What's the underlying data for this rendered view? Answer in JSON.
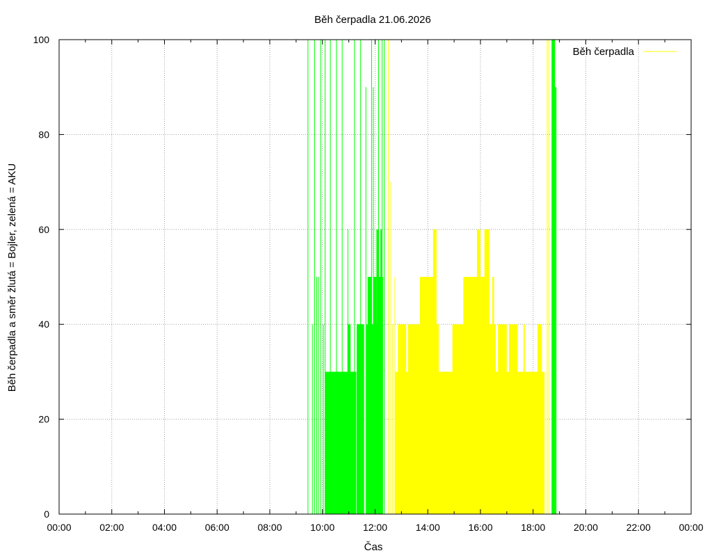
{
  "chart_data": {
    "type": "bar",
    "title": "Běh čerpadla 21.06.2026",
    "xlabel": "Čas",
    "ylabel": "Běh čerpadla a směr žlutá = Bojler, zelená = AKU",
    "xlim_hours": [
      0,
      24
    ],
    "ylim": [
      0,
      100
    ],
    "x_ticks": [
      "00:00",
      "02:00",
      "04:00",
      "06:00",
      "08:00",
      "10:00",
      "12:00",
      "14:00",
      "16:00",
      "18:00",
      "20:00",
      "22:00",
      "00:00"
    ],
    "y_ticks": [
      0,
      20,
      40,
      60,
      80,
      100
    ],
    "grid": true,
    "legend": {
      "position": "top-right",
      "entries": [
        {
          "label": "Běh čerpadla",
          "color": "#ffff00"
        }
      ]
    },
    "series": [
      {
        "color": "#00ff00",
        "note_direction": "AKU",
        "spikes": [
          {
            "t": "09:27",
            "v": 100
          },
          {
            "t": "09:37",
            "v": 40
          },
          {
            "t": "09:42",
            "v": 100
          },
          {
            "t": "09:47",
            "v": 50
          },
          {
            "t": "09:51",
            "v": 50
          },
          {
            "t": "09:56",
            "v": 100
          },
          {
            "t": "10:02",
            "v": 40
          },
          {
            "t": "10:06",
            "v": 100
          },
          {
            "t": "10:18",
            "v": 100
          },
          {
            "t": "10:32",
            "v": 100
          },
          {
            "t": "10:45",
            "v": 100
          },
          {
            "t": "10:58",
            "v": 60
          },
          {
            "t": "11:13",
            "v": 100
          },
          {
            "t": "11:22",
            "v": 40
          },
          {
            "t": "11:27",
            "v": 100
          },
          {
            "t": "11:39",
            "v": 90
          },
          {
            "t": "11:52",
            "v": 100
          },
          {
            "t": "11:56",
            "v": 90
          },
          {
            "t": "12:08",
            "v": 100
          },
          {
            "t": "12:16",
            "v": 100
          },
          {
            "t": "12:21",
            "v": 100
          }
        ],
        "blocks": [
          {
            "from": "10:06",
            "to": "11:17",
            "v": 30
          },
          {
            "from": "10:57",
            "to": "11:04",
            "v": 40
          },
          {
            "from": "11:18",
            "to": "11:35",
            "v": 40
          },
          {
            "from": "11:40",
            "to": "12:06",
            "v": 40
          },
          {
            "from": "11:43",
            "to": "11:52",
            "v": 50
          },
          {
            "from": "11:56",
            "to": "12:03",
            "v": 50
          },
          {
            "from": "12:03",
            "to": "12:08",
            "v": 60
          },
          {
            "from": "12:08",
            "to": "12:18",
            "v": 50
          },
          {
            "from": "12:12",
            "to": "12:16",
            "v": 60
          },
          {
            "from": "18:42",
            "to": "18:50",
            "v": 100
          },
          {
            "from": "18:50",
            "to": "18:53",
            "v": 90
          }
        ]
      },
      {
        "color": "#ffff00",
        "note_direction": "Bojler",
        "spikes": [
          {
            "t": "12:30",
            "v": 100
          },
          {
            "t": "12:36",
            "v": 70
          },
          {
            "t": "12:40",
            "v": 40
          },
          {
            "t": "12:45",
            "v": 50
          },
          {
            "t": "13:03",
            "v": 40
          },
          {
            "t": "13:10",
            "v": 40
          },
          {
            "t": "18:32",
            "v": 100
          },
          {
            "t": "18:36",
            "v": 100
          }
        ],
        "blocks": [
          {
            "from": "12:46",
            "to": "18:26",
            "v": 30
          },
          {
            "from": "12:52",
            "to": "13:10",
            "v": 40
          },
          {
            "from": "13:15",
            "to": "14:25",
            "v": 40
          },
          {
            "from": "13:42",
            "to": "14:19",
            "v": 50
          },
          {
            "from": "14:12",
            "to": "14:20",
            "v": 60
          },
          {
            "from": "14:56",
            "to": "15:50",
            "v": 40
          },
          {
            "from": "15:21",
            "to": "15:53",
            "v": 50
          },
          {
            "from": "15:53",
            "to": "16:20",
            "v": 50
          },
          {
            "from": "15:52",
            "to": "16:00",
            "v": 60
          },
          {
            "from": "16:09",
            "to": "16:20",
            "v": 60
          },
          {
            "from": "16:20",
            "to": "16:35",
            "v": 40
          },
          {
            "from": "16:27",
            "to": "16:31",
            "v": 50
          },
          {
            "from": "16:40",
            "to": "17:00",
            "v": 40
          },
          {
            "from": "17:05",
            "to": "17:25",
            "v": 40
          },
          {
            "from": "17:38",
            "to": "17:41",
            "v": 40
          },
          {
            "from": "18:10",
            "to": "18:20",
            "v": 40
          }
        ]
      }
    ]
  }
}
